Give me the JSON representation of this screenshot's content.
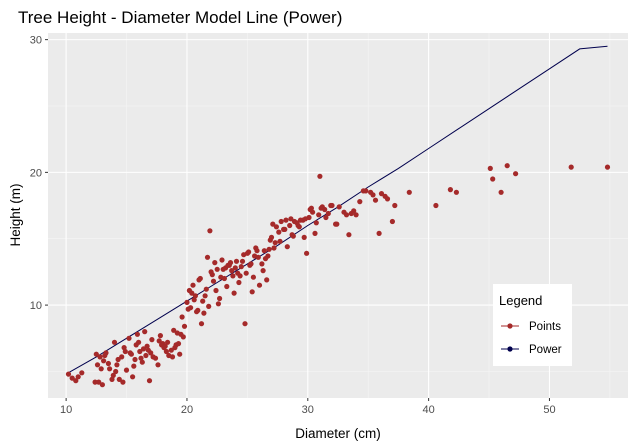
{
  "chart_data": {
    "type": "scatter",
    "title": "Tree Height - Diameter Model Line (Power)",
    "xlabel": "Diameter (cm)",
    "ylabel": "Height (m)",
    "xlim": [
      8.5,
      56.5
    ],
    "ylim": [
      3.0,
      30.5
    ],
    "x_ticks": [
      10,
      20,
      30,
      40,
      50
    ],
    "y_ticks": [
      10,
      20,
      30
    ],
    "grid": true,
    "legend_position": "bottom-right (inside)",
    "legend": {
      "title": "Legend",
      "entries": [
        {
          "label": "Points",
          "color": "#a52a2a",
          "style": "line-point"
        },
        {
          "label": "Power",
          "color": "#00004d",
          "style": "line-point"
        }
      ]
    },
    "series": [
      {
        "name": "Points",
        "kind": "scatter",
        "color": "#a52a2a",
        "x": [
          10.2,
          10.5,
          10.8,
          11.3,
          12.4,
          12.6,
          12.8,
          13.0,
          13.1,
          13.3,
          13.6,
          13.9,
          14.0,
          14.2,
          14.4,
          14.6,
          14.8,
          15.0,
          15.2,
          15.4,
          15.7,
          15.9,
          16.1,
          16.3,
          16.5,
          16.7,
          16.9,
          17.1,
          17.4,
          17.6,
          17.9,
          18.1,
          18.4,
          18.7,
          18.9,
          19.2,
          19.4,
          19.6,
          19.8,
          20.0,
          20.2,
          20.3,
          20.5,
          20.7,
          20.9,
          21.1,
          21.3,
          21.6,
          21.8,
          22.0,
          22.2,
          22.3,
          22.5,
          22.7,
          22.9,
          23.1,
          23.3,
          23.5,
          23.7,
          23.9,
          24.1,
          24.3,
          24.5,
          24.7,
          24.9,
          25.1,
          25.3,
          25.5,
          25.7,
          25.9,
          26.2,
          26.4,
          26.6,
          26.9,
          27.1,
          27.3,
          27.6,
          27.8,
          28.1,
          28.3,
          28.6,
          28.8,
          29.1,
          29.3,
          29.6,
          29.9,
          30.1,
          30.4,
          30.6,
          30.9,
          31.1,
          31.4,
          31.7,
          32.0,
          32.3,
          32.6,
          33.0,
          33.4,
          33.8,
          34.3,
          34.8,
          35.2,
          35.6,
          36.1,
          36.6,
          37.2,
          38.4,
          40.6,
          41.8,
          42.3,
          45.1,
          45.3,
          46.0,
          46.5,
          47.2,
          51.8,
          54.8,
          12.5,
          13.2,
          14.1,
          15.3,
          16.0,
          16.8,
          17.7,
          18.5,
          19.1,
          19.7,
          20.4,
          21.0,
          21.5,
          22.1,
          22.8,
          23.4,
          24.0,
          24.6,
          25.2,
          25.8,
          26.5,
          27.2,
          28.0,
          28.7,
          29.4,
          30.2,
          31.0,
          31.9,
          33.2,
          35.9,
          12.9,
          14.3,
          15.5,
          16.4,
          17.2,
          18.0,
          19.0,
          20.6,
          21.4,
          22.4,
          23.6,
          24.4,
          25.6,
          26.8,
          27.7,
          28.9,
          30.7,
          11.0,
          13.5,
          14.7,
          15.8,
          17.0,
          18.3,
          19.5,
          20.8,
          21.9,
          23.0,
          24.2,
          25.4,
          26.3,
          27.4,
          28.5,
          29.7,
          31.2,
          32.4,
          34.0,
          36.4,
          20.1,
          21.2,
          22.6,
          23.8,
          25.0,
          26.0,
          27.0,
          28.2,
          29.2,
          30.3,
          16.2,
          17.8,
          18.8,
          19.3,
          14.9,
          13.8,
          12.7,
          15.6,
          16.6,
          18.2,
          21.7,
          23.2,
          24.8,
          26.7,
          29.8,
          31.5,
          33.6,
          34.6,
          35.4,
          37.0
        ],
        "y": [
          4.8,
          4.5,
          4.3,
          4.9,
          4.2,
          5.5,
          6.1,
          4.0,
          5.8,
          6.4,
          5.2,
          4.7,
          7.2,
          5.5,
          4.4,
          6.1,
          6.8,
          5.1,
          7.5,
          6.3,
          5.9,
          7.8,
          6.5,
          5.7,
          8.0,
          6.9,
          4.3,
          7.4,
          6.0,
          5.5,
          7.0,
          6.8,
          7.2,
          6.6,
          8.1,
          7.9,
          6.3,
          9.1,
          8.4,
          10.2,
          11.1,
          9.8,
          11.5,
          10.7,
          9.6,
          12.0,
          10.3,
          11.2,
          9.9,
          12.5,
          11.8,
          13.2,
          12.7,
          10.5,
          13.4,
          12.0,
          11.4,
          13.0,
          12.6,
          10.9,
          13.3,
          11.7,
          12.9,
          13.8,
          12.4,
          14.0,
          13.1,
          12.1,
          14.3,
          13.6,
          13.1,
          14.1,
          11.9,
          14.9,
          16.1,
          14.7,
          15.5,
          16.3,
          15.7,
          14.4,
          16.5,
          15.2,
          16.2,
          15.9,
          16.4,
          13.9,
          16.6,
          17.0,
          15.4,
          16.8,
          17.3,
          17.2,
          16.9,
          17.5,
          16.1,
          17.4,
          17.0,
          15.3,
          17.1,
          17.8,
          18.6,
          18.5,
          17.9,
          18.4,
          18.0,
          17.5,
          18.5,
          17.5,
          18.7,
          18.5,
          20.3,
          19.5,
          18.5,
          20.5,
          19.9,
          20.4,
          20.4,
          6.3,
          6.2,
          5.0,
          6.4,
          7.2,
          6.6,
          7.3,
          6.2,
          7.0,
          7.6,
          10.9,
          11.9,
          10.7,
          12.3,
          12.1,
          13.0,
          12.8,
          13.3,
          13.0,
          14.1,
          13.5,
          14.3,
          15.7,
          15.3,
          16.4,
          17.2,
          19.7,
          17.5,
          16.8,
          15.4,
          5.2,
          5.9,
          4.6,
          6.7,
          6.1,
          7.1,
          6.8,
          10.4,
          9.4,
          11.1,
          13.2,
          12.2,
          13.7,
          14.2,
          14.8,
          16.3,
          16.2,
          4.6,
          5.6,
          4.2,
          7.0,
          6.4,
          6.5,
          7.8,
          9.5,
          15.6,
          12.7,
          12.4,
          11.0,
          12.6,
          15.9,
          16.0,
          15.1,
          17.4,
          16.1,
          16.8,
          18.2,
          9.7,
          8.6,
          10.1,
          12.2,
          13.9,
          11.5,
          15.1,
          16.4,
          16.0,
          17.3,
          6.0,
          7.7,
          6.1,
          7.1,
          6.5,
          4.4,
          4.2,
          5.4,
          6.2,
          6.9,
          13.6,
          12.8,
          8.6,
          13.7,
          16.5,
          16.6,
          16.9,
          18.6,
          18.3,
          16.3
        ]
      },
      {
        "name": "Power",
        "kind": "line",
        "color": "#00004d",
        "x": [
          10.0,
          12.5,
          15.0,
          17.5,
          20.0,
          22.5,
          25.0,
          27.5,
          30.0,
          32.5,
          35.0,
          37.5,
          40.0,
          42.5,
          45.0,
          47.5,
          50.0,
          52.5,
          54.8
        ],
        "y": [
          4.8,
          6.1,
          7.5,
          8.9,
          10.3,
          11.7,
          13.1,
          14.5,
          16.0,
          17.4,
          18.9,
          20.3,
          21.8,
          23.3,
          24.8,
          26.3,
          27.8,
          29.3,
          29.5
        ]
      }
    ]
  }
}
